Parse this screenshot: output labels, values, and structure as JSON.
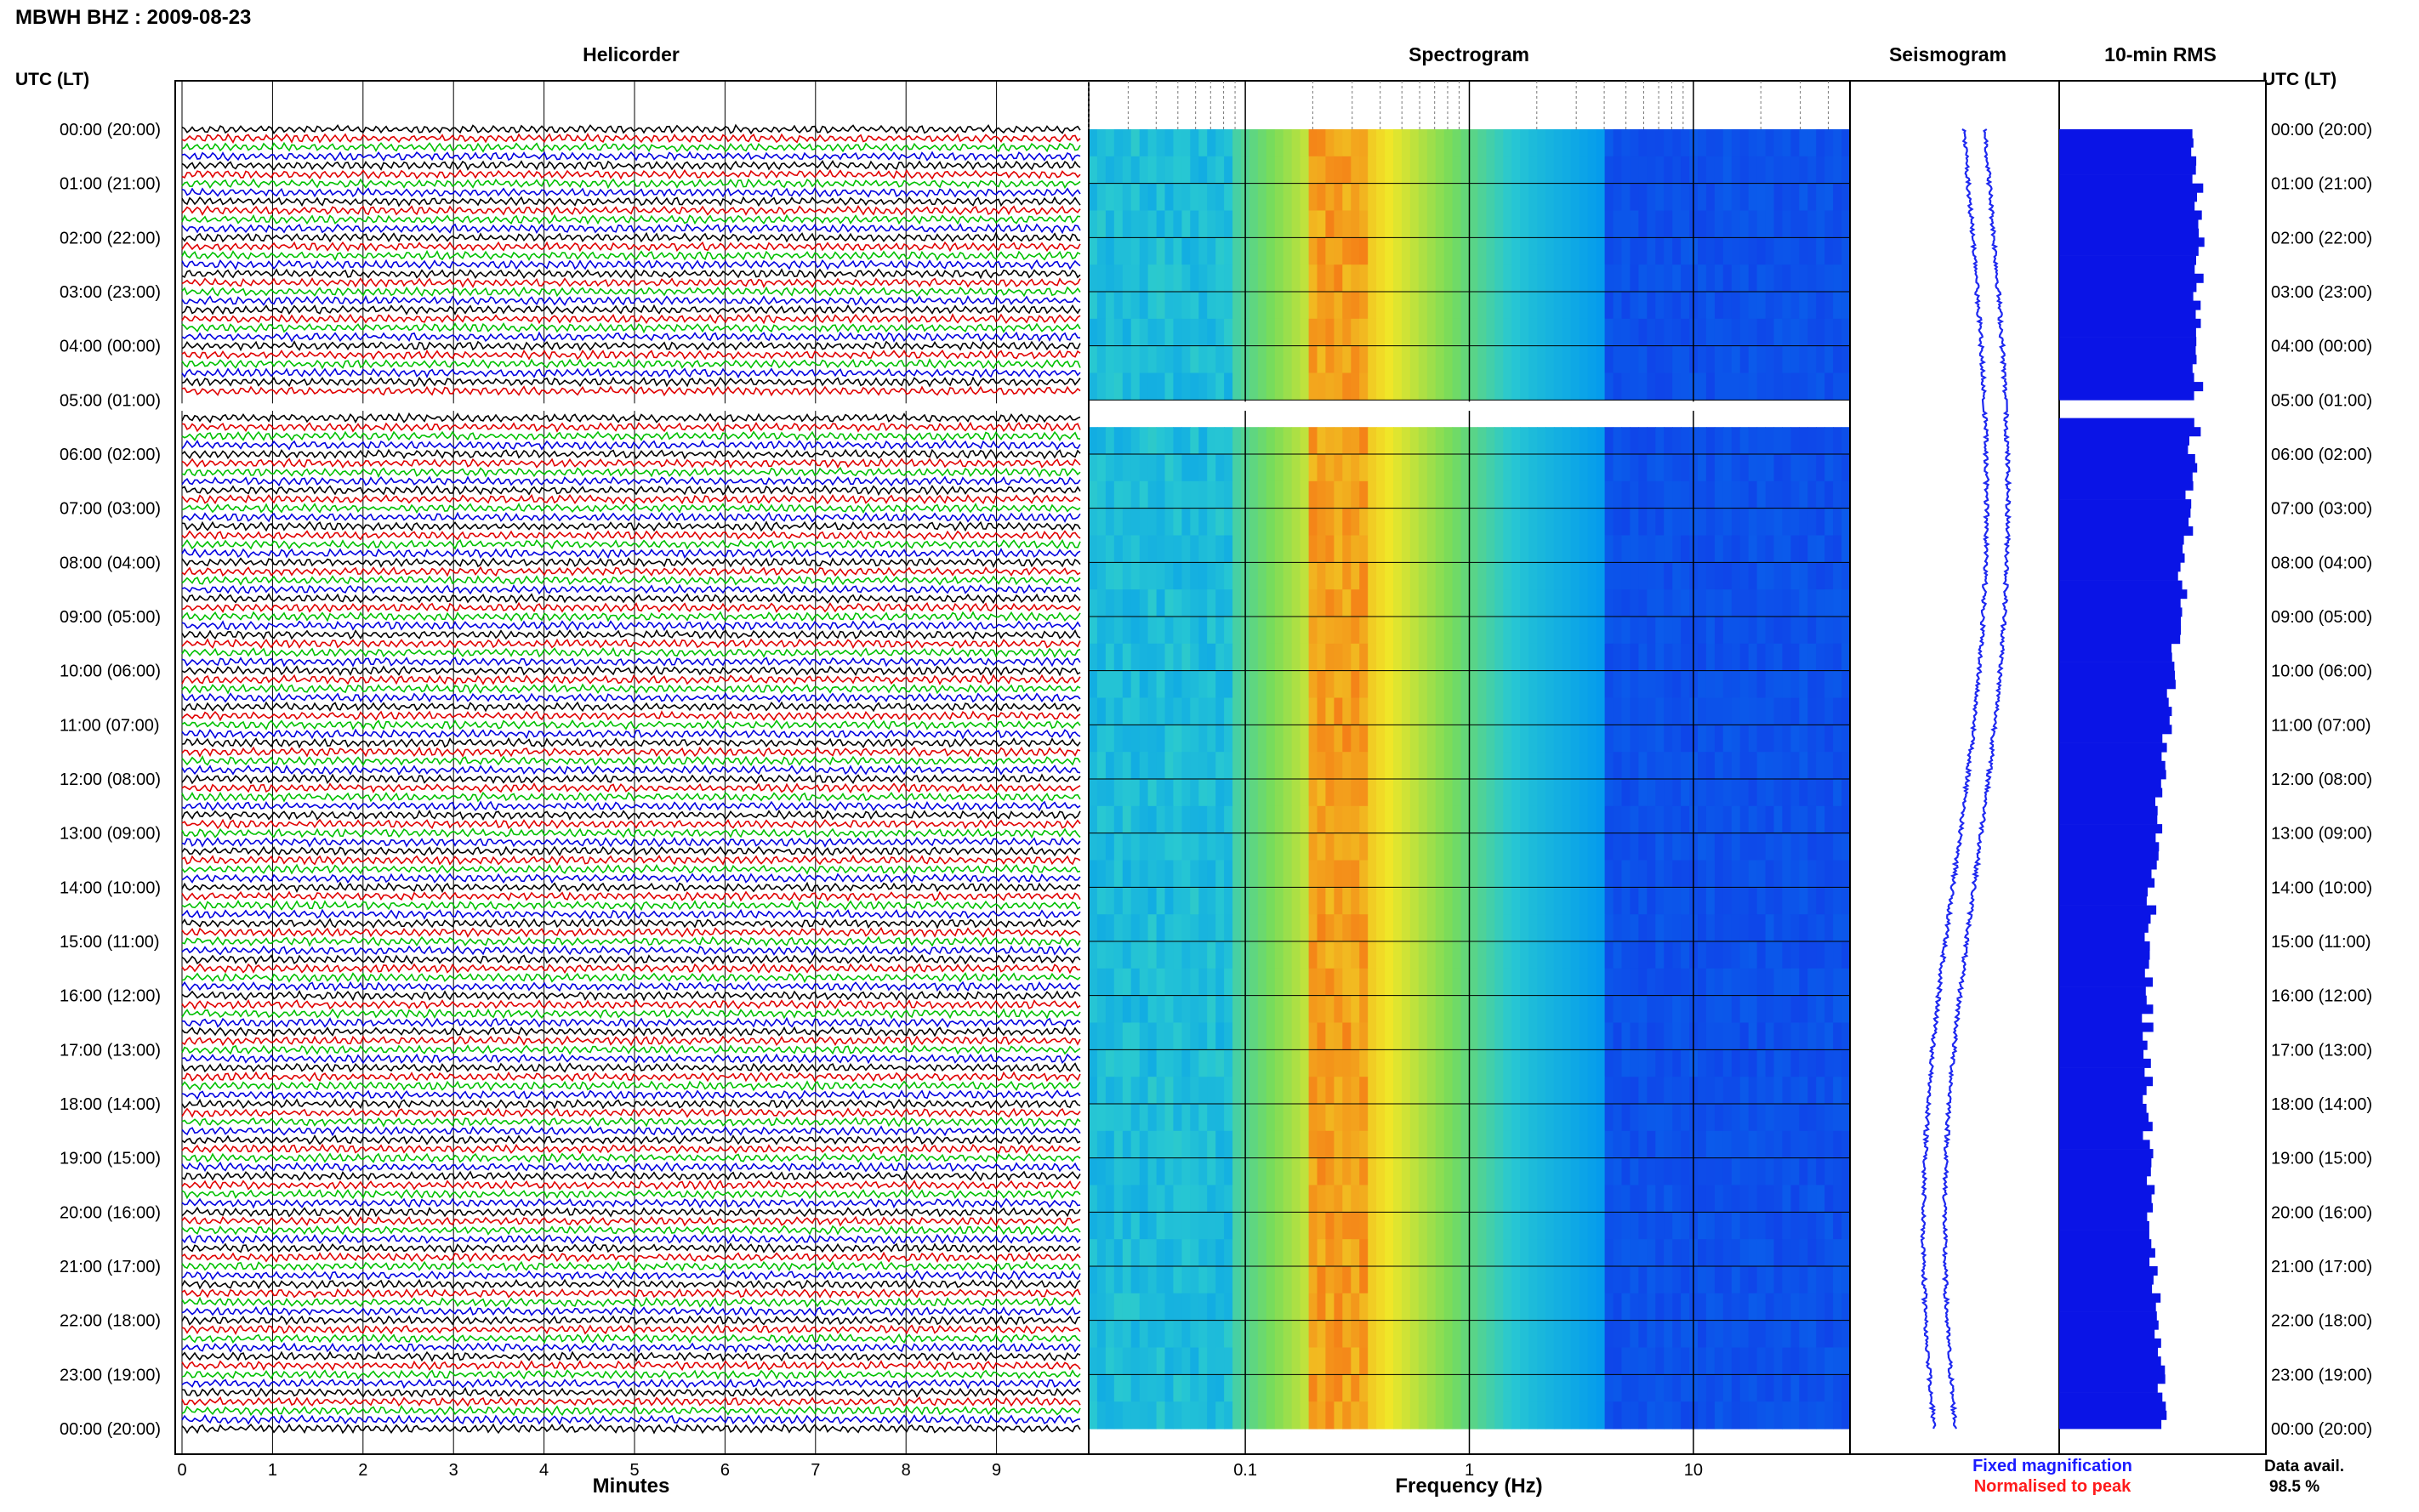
{
  "header": {
    "station_title": "MBWH BHZ : 2009-08-23"
  },
  "panels": {
    "helicorder": "Helicorder",
    "spectrogram": "Spectrogram",
    "seismogram": "Seismogram",
    "rms": "10-min RMS"
  },
  "axes": {
    "left_time_header": "UTC (LT)",
    "right_time_header": "UTC (LT)",
    "minutes_label": "Minutes",
    "frequency_label": "Frequency (Hz)"
  },
  "legend": {
    "fixed": "Fixed magnification",
    "normalised": "Normalised to peak",
    "fixed_color": "#1a1aff",
    "normalised_color": "#ff1a1a"
  },
  "data_availability": {
    "label": "Data avail.",
    "value": "98.5 %"
  },
  "colors": {
    "trace_cycle": [
      "#000000",
      "#e00000",
      "#00c000",
      "#0000e0"
    ],
    "spectrogram_low": "#1e3cf0",
    "spectrogram_peak": "#f04000",
    "rms_bar": "#0a14e6",
    "seismogram_trace": "#1e28f0"
  },
  "chart_data": [
    {
      "type": "line",
      "title": "Helicorder",
      "xlabel": "Minutes",
      "x_ticks": [
        "0",
        "1",
        "2",
        "3",
        "4",
        "5",
        "6",
        "7",
        "8",
        "9"
      ],
      "xlim": [
        0,
        10
      ],
      "row_labels": [
        "00:00 (20:00)",
        "01:00 (21:00)",
        "02:00 (22:00)",
        "03:00 (23:00)",
        "04:00 (00:00)",
        "05:00 (01:00)",
        "06:00 (02:00)",
        "07:00 (03:00)",
        "08:00 (04:00)",
        "09:00 (05:00)",
        "10:00 (06:00)",
        "11:00 (07:00)",
        "12:00 (08:00)",
        "13:00 (09:00)",
        "14:00 (10:00)",
        "15:00 (11:00)",
        "16:00 (12:00)",
        "17:00 (13:00)",
        "18:00 (14:00)",
        "19:00 (15:00)",
        "20:00 (16:00)",
        "21:00 (17:00)",
        "22:00 (18:00)",
        "23:00 (19:00)",
        "00:00 (20:00)"
      ],
      "traces_per_hour": 6,
      "gap_hour": [
        5.0,
        5.2
      ]
    },
    {
      "type": "heatmap",
      "title": "Spectrogram",
      "xlabel": "Frequency (Hz)",
      "x_scale": "log",
      "xlim": [
        0.02,
        50
      ],
      "x_ticks": [
        "0.1",
        "1",
        "10"
      ],
      "peak_frequency_hz": 0.25,
      "gap_hour": [
        5.0,
        5.2
      ]
    },
    {
      "type": "line",
      "title": "Seismogram",
      "gap_hour": [
        5.0,
        5.2
      ]
    },
    {
      "type": "bar",
      "title": "10-min RMS",
      "gap_hour": [
        5.0,
        5.2
      ]
    }
  ]
}
